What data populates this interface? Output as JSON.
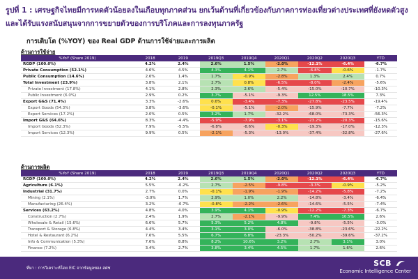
{
  "title": "รูปที่ 1 : เศรษฐกิจไทยมีการหดตัวน้อยลงในเกือบทุกภาคส่วน ยกเว้นด้านที่เกี่ยวข้องกับภาคการท่องเที่ยวต่างประเทศที่ยังหดตัวสูง และได้รับแรงสนับสนุนจากการขยายตัวของการบริโภคและการลงทุนภาครัฐ",
  "subtitle": "การเติบโต (%YOY) ของ Real GDP ด้านการใช้จ่ายและการผลิต",
  "columns": [
    "%YoY (Share 2019)",
    "2018",
    "2019",
    "2019Q3",
    "2019Q4",
    "2020Q1",
    "2020Q2",
    "2020Q3",
    "YTD"
  ],
  "expenditure": {
    "label": "ด้านการใช้จ่าย",
    "rows": [
      {
        "type": "gdp",
        "cells": [
          "RGDP (100.0%)",
          "4.2%",
          "2.4%",
          "2.6%",
          "1.5%",
          "-2.0%",
          "-12.1%",
          "-6.4%",
          "-6.7%"
        ]
      },
      {
        "type": "main",
        "cells": [
          "Private Consumption (52.1%)",
          "4.6%",
          "4.5%",
          "4.3%",
          "4.1%",
          "2.7%",
          "-6.8%",
          "-0.6%",
          "-1.7%"
        ]
      },
      {
        "type": "main",
        "cells": [
          "Public Consumption (14.6%)",
          "2.6%",
          "1.4%",
          "1.7%",
          "-0.9%",
          "-2.8%",
          "1.3%",
          "2.4%",
          "0.7%"
        ]
      },
      {
        "type": "main",
        "cells": [
          "Total Investment (23.9%)",
          "3.8%",
          "2.1%",
          "2.7%",
          "0.8%",
          "-6.5%",
          "-8.0%",
          "-2.4%",
          "-5.6%"
        ]
      },
      {
        "type": "sub",
        "cells": [
          "Private Investment (17.8%)",
          "4.1%",
          "2.8%",
          "2.3%",
          "2.6%",
          "-5.4%",
          "-15.0%",
          "-10.7%",
          "-10.3%"
        ]
      },
      {
        "type": "sub",
        "cells": [
          "Public Investment (6.0%)",
          "2.9%",
          "0.2%",
          "3.7%",
          "-5.1%",
          "-9.3%",
          "12.5%",
          "18.5%",
          "7.3%"
        ]
      },
      {
        "type": "main",
        "cells": [
          "Export G&S (71.4%)",
          "3.3%",
          "-2.6%",
          "0.6%",
          "-3.4%",
          "-7.3%",
          "-27.8%",
          "-23.5%",
          "-19.4%"
        ]
      },
      {
        "type": "sub",
        "cells": [
          "Export Goods (54.3%)",
          "3.8%",
          "-3.6%",
          "-0.1%",
          "-5.1%",
          "-2.0%",
          "-15.9%",
          "-7.7%",
          "-7.2%"
        ]
      },
      {
        "type": "sub",
        "cells": [
          "Export Services (17.2%)",
          "2.0%",
          "0.5%",
          "3.2%",
          "1.7%",
          "-32.2%",
          "-68.0%",
          "-73.3%",
          "-56.3%"
        ]
      },
      {
        "type": "main",
        "cells": [
          "Import G&S (64.6%)",
          "8.3%",
          "-4.4%",
          "-5.9%",
          "-7.9%",
          "-3.1%",
          "-23.2%",
          "-20.3%",
          "-15.6%"
        ]
      },
      {
        "type": "sub",
        "cells": [
          "Import Goods (52.3%)",
          "7.9%",
          "-5.5%",
          "-6.8%",
          "-8.6%",
          "-0.3%",
          "-19.3%",
          "-17.0%",
          "-12.3%"
        ]
      },
      {
        "type": "sub",
        "cells": [
          "Import Services (12.3%)",
          "9.9%",
          "0.5%",
          "-2.1%",
          "-5.3%",
          "-13.0%",
          "-37.4%",
          "-32.8%",
          "-27.6%"
        ]
      }
    ]
  },
  "production": {
    "label": "ด้านการผลิต",
    "rows": [
      {
        "type": "gdp",
        "cells": [
          "RGDP (100.0%)",
          "4.2%",
          "2.4%",
          "2.6%",
          "1.5%",
          "-2.0%",
          "-12.1%",
          "-6.4%",
          "-6.7%"
        ]
      },
      {
        "type": "main",
        "cells": [
          "Agriculture (6.1%)",
          "5.5%",
          "-0.2%",
          "2.7%",
          "-2.5%",
          "-9.8%",
          "-3.3%",
          "-0.9%",
          "-5.2%"
        ]
      },
      {
        "type": "main",
        "cells": [
          "Industrial (31.7%)",
          "2.7%",
          "0.0%",
          "-0.1%",
          "-1.9%",
          "-1.9%",
          "-14.2%",
          "-5.8%",
          "-7.2%"
        ]
      },
      {
        "type": "sub",
        "cells": [
          "Mining (2.1%)",
          "-3.0%",
          "1.7%",
          "2.9%",
          "1.0%",
          "2.2%",
          "-14.8%",
          "-3.4%",
          "-6.4%"
        ]
      },
      {
        "type": "sub",
        "cells": [
          "Manufacturing (26.4%)",
          "3.2%",
          "-0.7%",
          "-0.8%",
          "-2.2%",
          "-2.6%",
          "-14.6%",
          "-5.5%",
          "-7.4%"
        ]
      },
      {
        "type": "main",
        "cells": [
          "Services (63.2%)",
          "4.8%",
          "4.0%",
          "3.9%",
          "4.1%",
          "-0.9%",
          "-12.2%",
          "-7.3%",
          "-6.7%"
        ]
      },
      {
        "type": "sub",
        "cells": [
          "Construction (2.7%)",
          "2.4%",
          "1.9%",
          "2.7%",
          "-2.1%",
          "-9.9%",
          "7.4%",
          "10.5%",
          "2.6%"
        ]
      },
      {
        "type": "sub",
        "cells": [
          "Wholesale & Retail (15.6%)",
          "6.6%",
          "5.7%",
          "5.3%",
          "5.2%",
          "4.8%",
          "-9.8%",
          "-5.5%",
          "-3.0%"
        ]
      },
      {
        "type": "sub",
        "cells": [
          "Transport & Storage (6.8%)",
          "4.4%",
          "3.4%",
          "3.1%",
          "3.0%",
          "-6.0%",
          "-38.8%",
          "-23.6%",
          "-22.2%"
        ]
      },
      {
        "type": "sub",
        "cells": [
          "Hotel & Restaurant (6.2%)",
          "7.6%",
          "5.5%",
          "6.7%",
          "6.8%",
          "-23.3%",
          "-50.2%",
          "-39.6%",
          "-37.2%"
        ]
      },
      {
        "type": "sub",
        "cells": [
          "Info & Communication (5.3%)",
          "7.6%",
          "8.8%",
          "8.2%",
          "10.6%",
          "3.2%",
          "2.7%",
          "3.1%",
          "3.0%"
        ]
      },
      {
        "type": "sub",
        "cells": [
          "Finance (7.2%)",
          "3.4%",
          "2.7%",
          "3.8%",
          "3.4%",
          "4.5%",
          "1.7%",
          "1.6%",
          "2.6%"
        ]
      }
    ]
  },
  "colors": {
    "purple": "#4b2a7d",
    "strong_growth": "#34b35a",
    "growth": "#b7e2b3",
    "flat": "#ffe14d",
    "mild_decline": "#f7a35f",
    "decline": "#e6484b",
    "light_decline": "#f7c8c3"
  },
  "footer": {
    "source": "ที่มา : การวิเคราะห์โดย EIC จากข้อมูลของ สศช",
    "logo_name": "SCB",
    "logo_sub": "Economic Intelligence Center",
    "logo_icon": "scb-logo-icon"
  }
}
